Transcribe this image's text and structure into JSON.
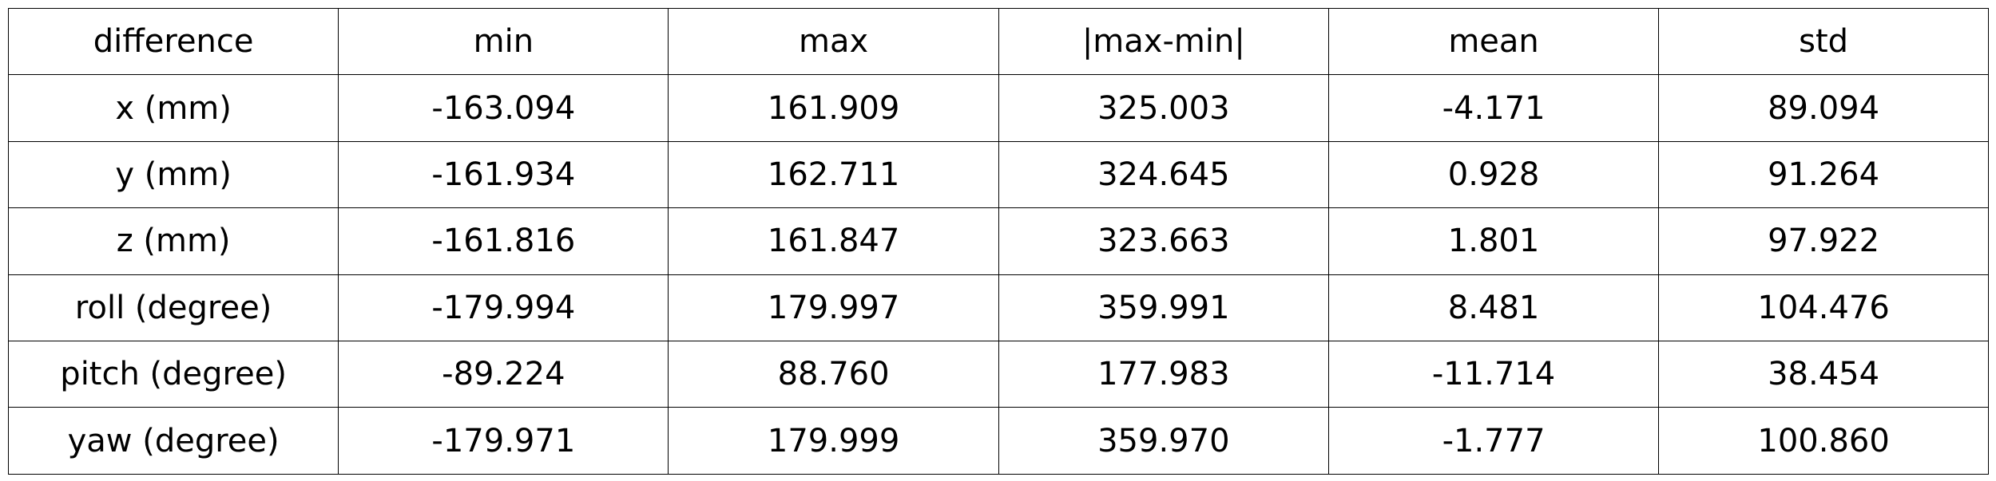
{
  "chart_data": {
    "type": "table",
    "columns": [
      "difference",
      "min",
      "max",
      "|max-min|",
      "mean",
      "std"
    ],
    "rows": [
      [
        "x (mm)",
        "-163.094",
        "161.909",
        "325.003",
        "-4.171",
        "89.094"
      ],
      [
        "y (mm)",
        "-161.934",
        "162.711",
        "324.645",
        "0.928",
        "91.264"
      ],
      [
        "z (mm)",
        "-161.816",
        "161.847",
        "323.663",
        "1.801",
        "97.922"
      ],
      [
        "roll (degree)",
        "-179.994",
        "179.997",
        "359.991",
        "8.481",
        "104.476"
      ],
      [
        "pitch (degree)",
        "-89.224",
        "88.760",
        "177.983",
        "-11.714",
        "38.454"
      ],
      [
        "yaw (degree)",
        "-179.971",
        "179.999",
        "359.970",
        "-1.777",
        "100.860"
      ]
    ],
    "grid": true,
    "colors": {
      "text": "#000000",
      "border": "#000000",
      "background": "#ffffff"
    }
  }
}
